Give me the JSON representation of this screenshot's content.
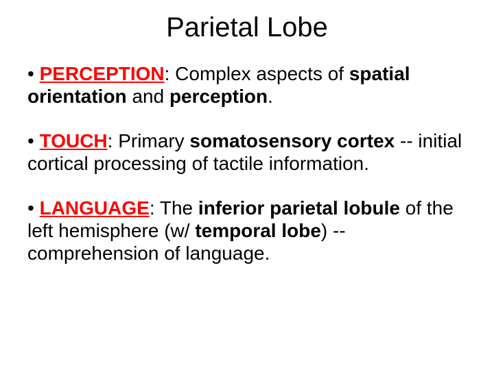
{
  "title": "Parietal Lobe",
  "bullets": [
    {
      "keyword": "PERCEPTION",
      "pre": "• ",
      "t1": ": Complex aspects of ",
      "b1": "spatial orientation",
      "t2": " and ",
      "b2": "perception",
      "t3": "."
    },
    {
      "keyword": "TOUCH",
      "pre": "• ",
      "t1": ": Primary ",
      "b1": "somatosensory cortex",
      "t2": " -- initial cortical processing of tactile information.",
      "b2": "",
      "t3": ""
    },
    {
      "keyword": "LANGUAGE",
      "pre": "• ",
      "t1": ": The ",
      "b1": "inferior parietal lobule",
      "t2": " of the left hemisphere (w/ ",
      "b2": "temporal lobe",
      "t3": ") -- comprehension of language."
    }
  ],
  "colors": {
    "keyword": "#ff0000",
    "text": "#000000",
    "background": "#ffffff"
  },
  "typography": {
    "title_fontsize": 40,
    "body_fontsize": 28,
    "font_family": "Arial"
  }
}
